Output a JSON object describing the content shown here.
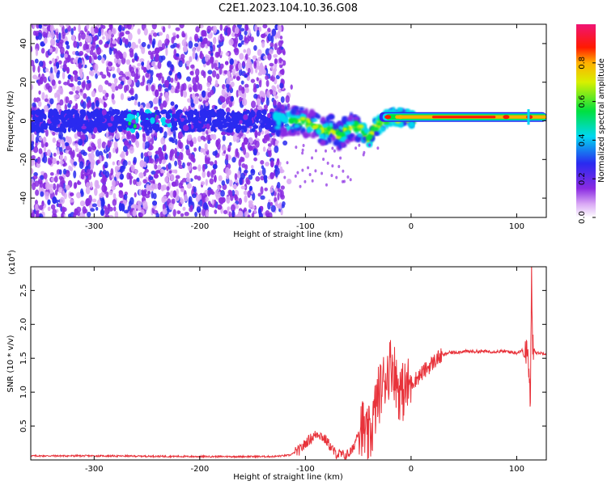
{
  "title": "C2E1.2023.104.10.36.G08",
  "chart_data": [
    {
      "type": "heatmap",
      "xlabel": "Height of straight line (km)",
      "ylabel": "Frequency (Hz)",
      "xlim": [
        -360,
        128
      ],
      "ylim": [
        -50,
        50
      ],
      "xticks": [
        -300,
        -200,
        -100,
        0,
        100
      ],
      "yticks": [
        -40,
        -20,
        0,
        20,
        40
      ],
      "colorbar": {
        "label": "Normalized spectral amplitude",
        "range": [
          0,
          1
        ],
        "ticks": [
          "0.0",
          "0.2",
          "0.4",
          "0.6",
          "0.8"
        ],
        "tick_values": [
          0.0,
          0.2,
          0.4,
          0.6,
          0.8
        ],
        "colormap": "white-violet-blue-cyan-green-yellow-red-pink"
      },
      "features": [
        {
          "region": "x < -120",
          "description": "diffuse scattered noise across all frequencies",
          "amplitude": 0.15
        },
        {
          "region": "x -120 to -30",
          "center_freq_hz": [
            0,
            -2,
            -8,
            -4,
            -10
          ],
          "amplitude": 0.5
        },
        {
          "region": "x -30 to 128",
          "center_freq_hz": 2,
          "amplitude": 0.9
        }
      ]
    },
    {
      "type": "line",
      "xlabel": "Height of straight line (km)",
      "ylabel": "SNR (10 * v/v)",
      "yscale_label": "(x10",
      "yscale_exp": "4",
      "yscale_suffix": ")",
      "xlim": [
        -360,
        128
      ],
      "ylim": [
        0,
        2.85
      ],
      "xticks": [
        -300,
        -200,
        -100,
        0,
        100
      ],
      "yticks": [
        0.5,
        1.0,
        1.5,
        2.0,
        2.5
      ],
      "ytick_labels": [
        "0.5",
        "1.0",
        "1.5",
        "2.0",
        "2.5"
      ],
      "series": [
        {
          "color": "#e8323a",
          "x": [
            -360,
            -300,
            -200,
            -130,
            -115,
            -105,
            -98,
            -92,
            -88,
            -80,
            -72,
            -62,
            -55,
            -48,
            -45,
            -42,
            -38,
            -32,
            -25,
            -18,
            -12,
            -8,
            -2,
            5,
            15,
            25,
            35,
            50,
            70,
            90,
            100,
            105,
            108,
            110,
            112,
            113,
            114,
            115,
            118,
            128
          ],
          "y": [
            0.06,
            0.06,
            0.05,
            0.05,
            0.07,
            0.15,
            0.28,
            0.35,
            0.4,
            0.28,
            0.1,
            0.06,
            0.15,
            0.55,
            0.45,
            0.3,
            0.4,
            0.9,
            1.2,
            1.45,
            1.05,
            1.0,
            1.1,
            1.2,
            1.35,
            1.5,
            1.58,
            1.6,
            1.6,
            1.6,
            1.58,
            1.62,
            1.5,
            1.7,
            1.1,
            0.75,
            2.85,
            1.7,
            1.58,
            1.57
          ]
        }
      ]
    }
  ]
}
